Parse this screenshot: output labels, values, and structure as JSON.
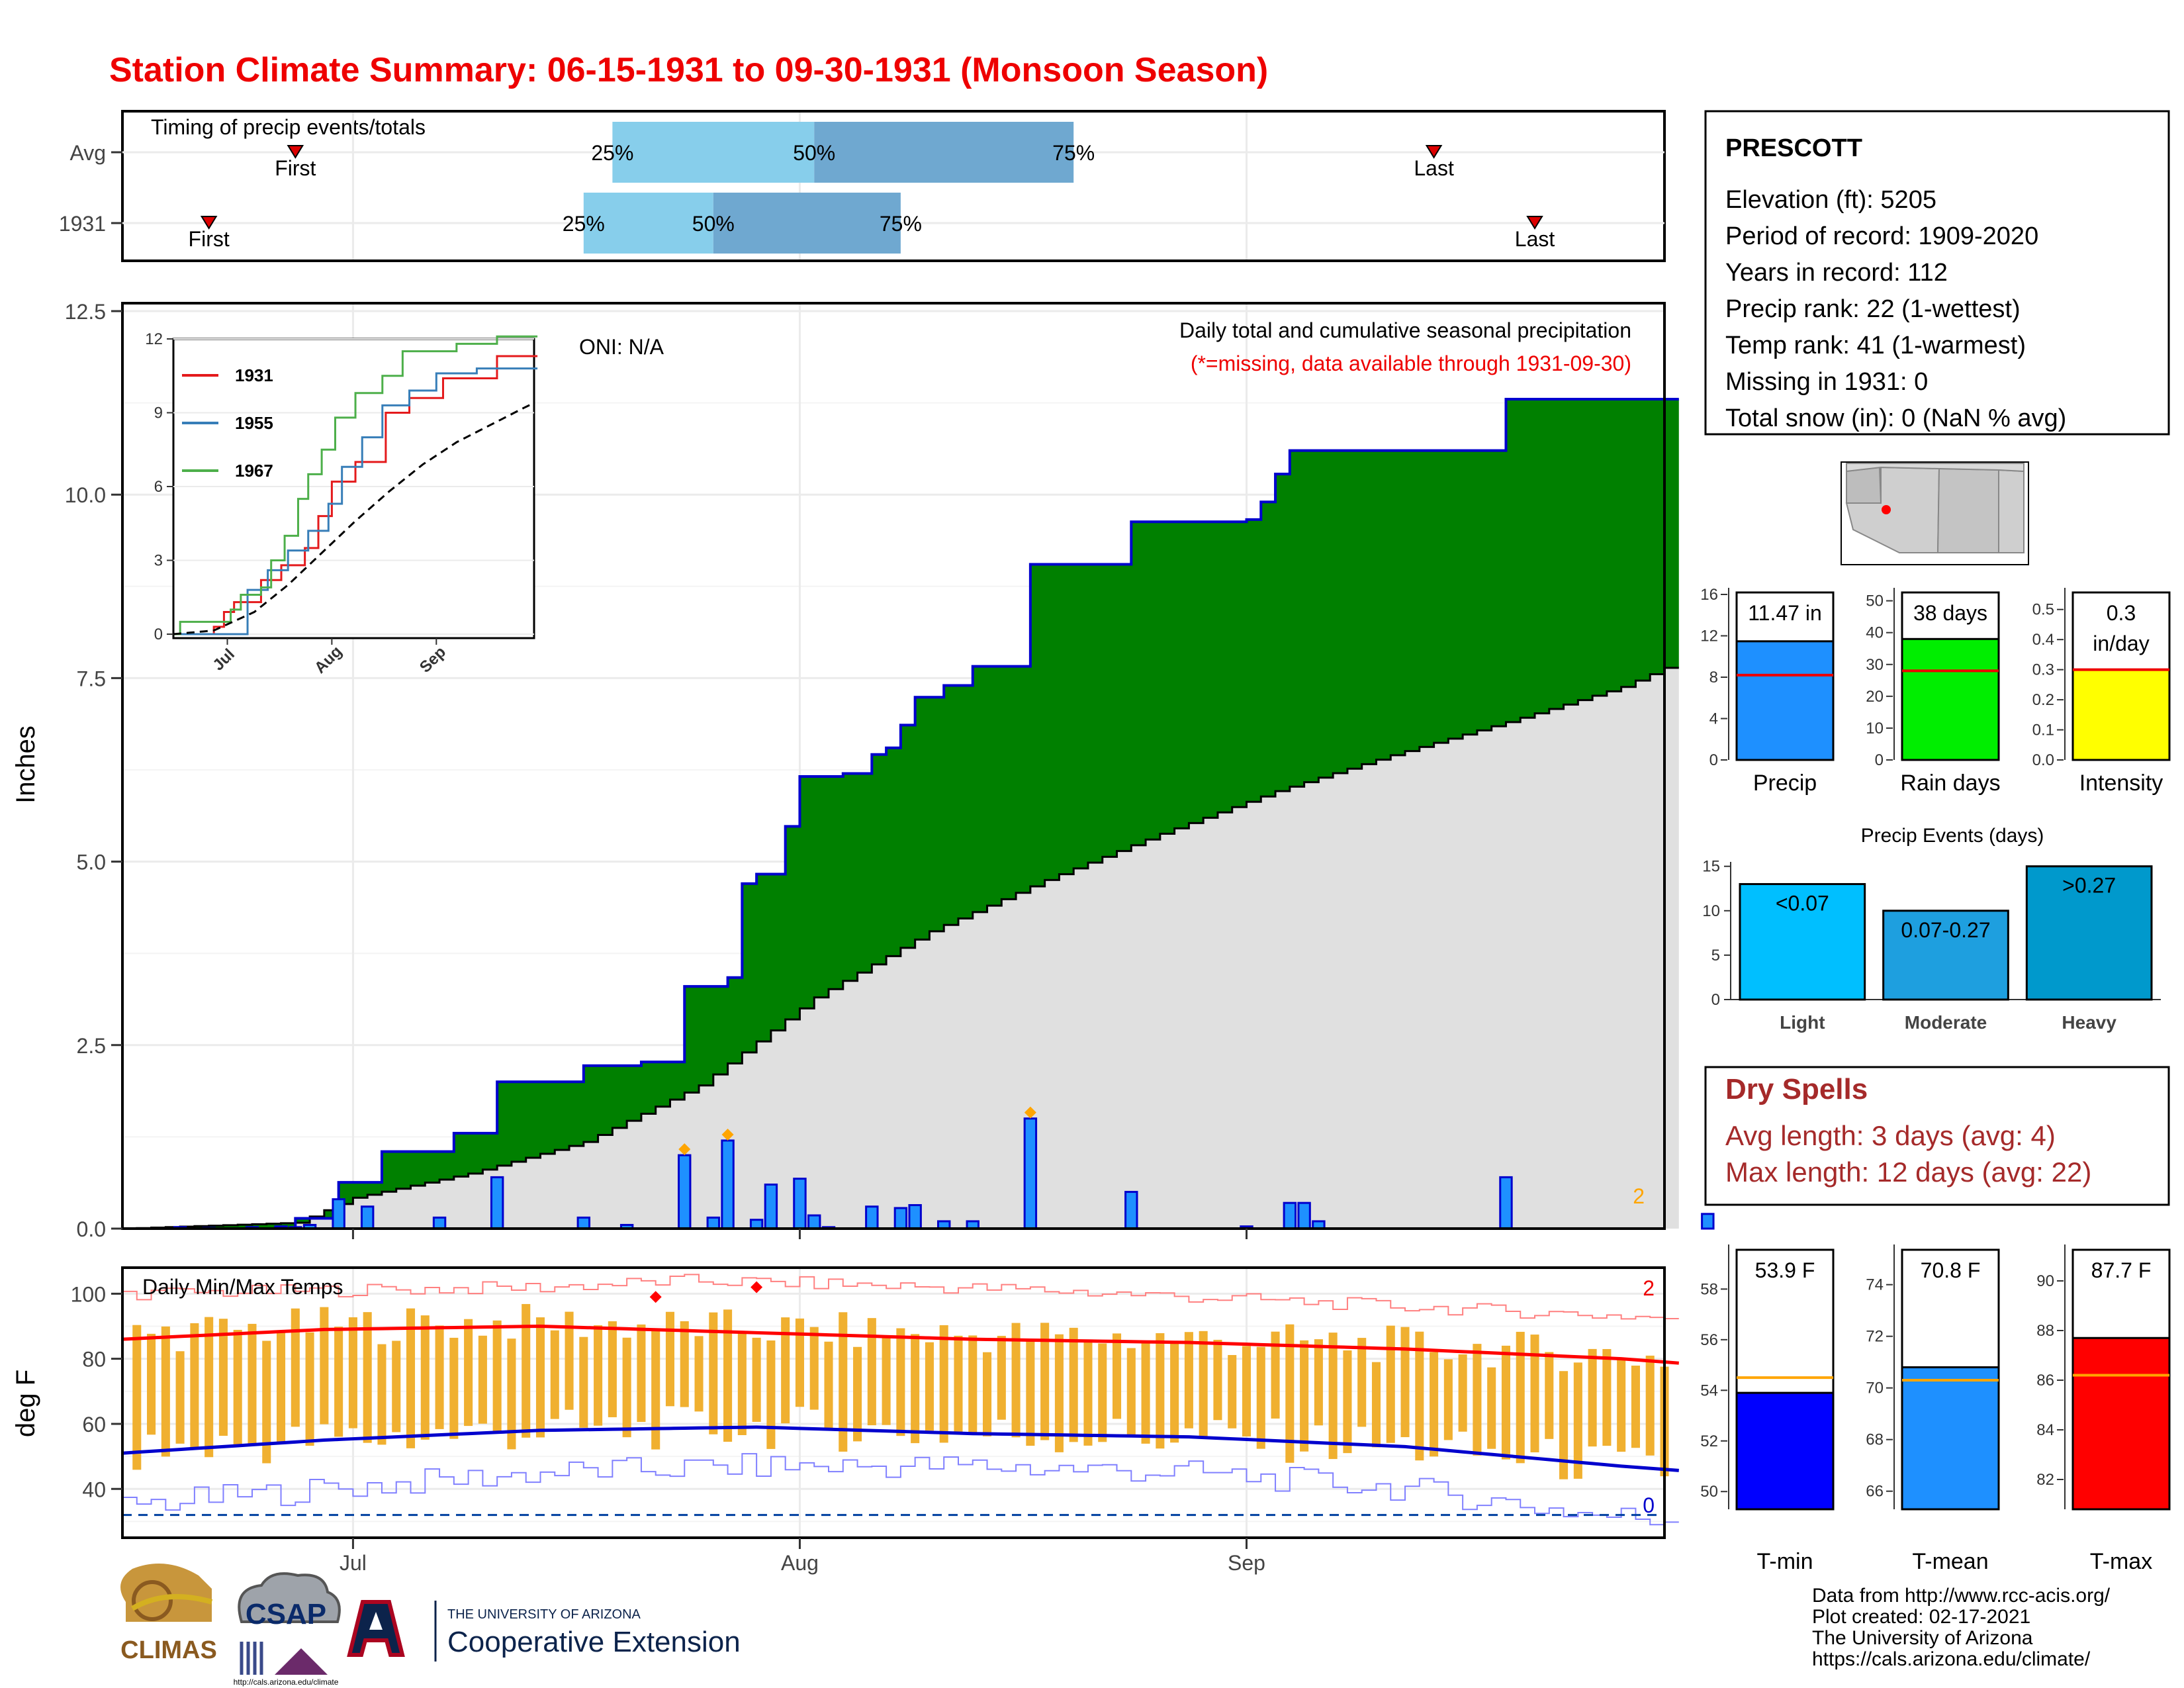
{
  "title": "Station Climate Summary: 06-15-1931 to 09-30-1931 (Monsoon Season)",
  "colors": {
    "title": "#ee0000",
    "green": "#008000",
    "cum_line": "#0000cd",
    "bar": "#1e90ff",
    "normal_fill": "#e0e0e0",
    "tmax": "#ff0000",
    "tmin": "#0000ff",
    "range_bar": "#f0b030",
    "dry": "#a52a2a"
  },
  "timing": {
    "title": "Timing of precip events/totals",
    "rows": [
      {
        "label": "Avg",
        "first_label": "First",
        "last_label": "Last",
        "first_doy": 178,
        "last_doy": 257,
        "p25": 200,
        "p50": 214,
        "p75": 232,
        "p25_label": "25%",
        "p50_label": "50%",
        "p75_label": "75%"
      },
      {
        "label": "1931",
        "first_label": "First",
        "last_label": "Last",
        "first_doy": 172,
        "last_doy": 264,
        "p25": 198,
        "p50": 207,
        "p75": 220,
        "p25_label": "25%",
        "p50_label": "50%",
        "p75_label": "75%"
      }
    ]
  },
  "station": {
    "name": "PRESCOTT",
    "lines": [
      "Elevation (ft): 5205",
      "Period of record: 1909-2020",
      "Years in record: 112",
      "Precip rank: 22 (1-wettest)",
      "Temp rank: 41 (1-warmest)",
      "Missing in 1931: 0",
      "Total snow (in): 0 (NaN % avg)"
    ]
  },
  "main": {
    "ylabel": "Inches",
    "oni": "ONI: N/A",
    "header": "Daily total and cumulative seasonal precipitation",
    "subheader": "(*=missing, data available through 1931-09-30)",
    "count_label": "2",
    "x_ticks": [
      "Jul",
      "Aug",
      "Sep"
    ],
    "y_ticks": [
      "0.0",
      "2.5",
      "5.0",
      "7.5",
      "10.0",
      "12.5"
    ]
  },
  "inset": {
    "legend": [
      "1931",
      "1955",
      "1967"
    ],
    "y_ticks": [
      "0",
      "3",
      "6",
      "9",
      "12"
    ],
    "x_ticks": [
      "Jul",
      "Aug",
      "Sep"
    ]
  },
  "chart_data": [
    {
      "type": "bar",
      "title": "Daily total and cumulative seasonal precipitation",
      "ylabel": "Inches",
      "ylim": [
        0,
        12.5
      ],
      "x_domain_doy": [
        166,
        273
      ],
      "daily_precip": [
        [
          170,
          0.02
        ],
        [
          172,
          0.01
        ],
        [
          175,
          0.02
        ],
        [
          177,
          0.03
        ],
        [
          178,
          0.02
        ],
        [
          179,
          0.05
        ],
        [
          181,
          0.4
        ],
        [
          183,
          0.3
        ],
        [
          188,
          0.15
        ],
        [
          192,
          0.7
        ],
        [
          198,
          0.15
        ],
        [
          201,
          0.05
        ],
        [
          205,
          1.0
        ],
        [
          207,
          0.15
        ],
        [
          208,
          1.2
        ],
        [
          210,
          0.12
        ],
        [
          211,
          0.6
        ],
        [
          213,
          0.68
        ],
        [
          214,
          0.18
        ],
        [
          215,
          0.02
        ],
        [
          218,
          0.3
        ],
        [
          220,
          0.28
        ],
        [
          221,
          0.32
        ],
        [
          223,
          0.1
        ],
        [
          225,
          0.1
        ],
        [
          229,
          1.5
        ],
        [
          236,
          0.5
        ],
        [
          244,
          0.03
        ],
        [
          247,
          0.35
        ],
        [
          248,
          0.35
        ],
        [
          249,
          0.1
        ],
        [
          262,
          0.7
        ],
        [
          276,
          0.2
        ]
      ],
      "cumulative_1931": [
        [
          166,
          0
        ],
        [
          178,
          0.14
        ],
        [
          181,
          0.63
        ],
        [
          184,
          1.05
        ],
        [
          189,
          1.3
        ],
        [
          192,
          2.0
        ],
        [
          198,
          2.22
        ],
        [
          202,
          2.27
        ],
        [
          205,
          3.3
        ],
        [
          208,
          3.42
        ],
        [
          209,
          4.7
        ],
        [
          210,
          4.83
        ],
        [
          212,
          5.48
        ],
        [
          213,
          6.16
        ],
        [
          216,
          6.2
        ],
        [
          218,
          6.46
        ],
        [
          219,
          6.55
        ],
        [
          220,
          6.86
        ],
        [
          221,
          7.24
        ],
        [
          223,
          7.4
        ],
        [
          225,
          7.66
        ],
        [
          229,
          9.05
        ],
        [
          236,
          9.63
        ],
        [
          244,
          9.66
        ],
        [
          245,
          9.9
        ],
        [
          246,
          10.28
        ],
        [
          247,
          10.6
        ],
        [
          262,
          11.3
        ],
        [
          276,
          11.47
        ]
      ],
      "normal_cumulative": [
        [
          166,
          0
        ],
        [
          178,
          0.08
        ],
        [
          182,
          0.42
        ],
        [
          190,
          0.75
        ],
        [
          198,
          1.18
        ],
        [
          206,
          1.95
        ],
        [
          214,
          3.15
        ],
        [
          222,
          4.05
        ],
        [
          230,
          4.75
        ],
        [
          238,
          5.38
        ],
        [
          246,
          5.96
        ],
        [
          254,
          6.45
        ],
        [
          262,
          6.9
        ],
        [
          270,
          7.38
        ],
        [
          276,
          7.9
        ]
      ],
      "oni": "N/A"
    },
    {
      "type": "line",
      "title": "Inset cumulative precipitation",
      "legend": [
        "1931",
        "1955",
        "1967"
      ],
      "ylim": [
        0,
        12
      ],
      "series": [
        {
          "name": "1931",
          "color": "#e41a1c",
          "points": [
            [
              166,
              0
            ],
            [
              178,
              0.3
            ],
            [
              181,
              0.9
            ],
            [
              184,
              1.3
            ],
            [
              192,
              2.2
            ],
            [
              198,
              2.8
            ],
            [
              205,
              3.5
            ],
            [
              209,
              4.8
            ],
            [
              213,
              6.2
            ],
            [
              220,
              7.0
            ],
            [
              229,
              9.0
            ],
            [
              236,
              9.6
            ],
            [
              246,
              10.4
            ],
            [
              262,
              11.3
            ],
            [
              276,
              11.6
            ]
          ]
        },
        {
          "name": "1955",
          "color": "#377eb8",
          "points": [
            [
              166,
              0
            ],
            [
              186,
              0
            ],
            [
              188,
              1.8
            ],
            [
              194,
              2.6
            ],
            [
              200,
              3.4
            ],
            [
              206,
              4.2
            ],
            [
              212,
              5.3
            ],
            [
              216,
              6.8
            ],
            [
              222,
              8.0
            ],
            [
              228,
              9.3
            ],
            [
              236,
              9.9
            ],
            [
              244,
              10.6
            ],
            [
              256,
              10.8
            ],
            [
              276,
              10.8
            ]
          ]
        },
        {
          "name": "1967",
          "color": "#4daf4a",
          "points": [
            [
              166,
              0
            ],
            [
              168,
              0.5
            ],
            [
              180,
              0.5
            ],
            [
              183,
              1.0
            ],
            [
              186,
              1.6
            ],
            [
              192,
              1.9
            ],
            [
              195,
              3.0
            ],
            [
              199,
              4.0
            ],
            [
              203,
              5.5
            ],
            [
              206,
              6.5
            ],
            [
              210,
              7.5
            ],
            [
              214,
              8.8
            ],
            [
              220,
              9.8
            ],
            [
              228,
              10.5
            ],
            [
              234,
              11.5
            ],
            [
              250,
              11.8
            ],
            [
              262,
              12.1
            ],
            [
              276,
              12.1
            ]
          ]
        },
        {
          "name": "",
          "color": "#000000",
          "dashed": true,
          "points": [
            [
              166,
              0
            ],
            [
              178,
              0.15
            ],
            [
              190,
              0.9
            ],
            [
              200,
              2.0
            ],
            [
              210,
              3.3
            ],
            [
              220,
              4.6
            ],
            [
              230,
              5.8
            ],
            [
              240,
              6.9
            ],
            [
              250,
              7.8
            ],
            [
              260,
              8.5
            ],
            [
              270,
              9.2
            ],
            [
              276,
              9.6
            ]
          ]
        }
      ]
    },
    {
      "type": "line",
      "title": "Daily Min/Max Temps",
      "ylabel": "deg F",
      "ylim": [
        25,
        108
      ],
      "y_ticks": [
        "40",
        "60",
        "80",
        "100"
      ],
      "x_ticks": [
        "Jul",
        "Aug",
        "Sep"
      ],
      "avg_max_anchors": [
        [
          166,
          86
        ],
        [
          180,
          89
        ],
        [
          195,
          90
        ],
        [
          210,
          88
        ],
        [
          225,
          86
        ],
        [
          240,
          85
        ],
        [
          255,
          83
        ],
        [
          270,
          80
        ],
        [
          276,
          78
        ]
      ],
      "avg_min_anchors": [
        [
          166,
          51
        ],
        [
          180,
          55
        ],
        [
          195,
          58
        ],
        [
          210,
          59
        ],
        [
          225,
          57
        ],
        [
          240,
          56
        ],
        [
          255,
          53
        ],
        [
          270,
          47
        ],
        [
          276,
          45
        ]
      ],
      "record_max_anchors": [
        [
          166,
          100
        ],
        [
          180,
          101
        ],
        [
          195,
          102
        ],
        [
          205,
          104
        ],
        [
          215,
          103
        ],
        [
          230,
          101
        ],
        [
          245,
          98
        ],
        [
          260,
          95
        ],
        [
          276,
          92
        ]
      ],
      "record_min_anchors": [
        [
          166,
          35
        ],
        [
          180,
          40
        ],
        [
          195,
          45
        ],
        [
          210,
          47
        ],
        [
          225,
          47
        ],
        [
          240,
          45
        ],
        [
          255,
          40
        ],
        [
          268,
          32
        ],
        [
          276,
          30
        ]
      ],
      "reference_line": 32,
      "record_count_high": "2",
      "record_count_low": "0",
      "title_label": "Daily Min/Max Temps"
    },
    {
      "type": "bar",
      "title": "Precip",
      "categories": [
        "Precip"
      ],
      "values": [
        11.47
      ],
      "avg": 8.2,
      "ylim": [
        0,
        16
      ],
      "y_ticks": [
        "0",
        "4",
        "8",
        "12",
        "16"
      ],
      "value_label": "11.47 in",
      "color": "#1e90ff"
    },
    {
      "type": "bar",
      "title": "Rain days",
      "categories": [
        "Rain days"
      ],
      "values": [
        38
      ],
      "avg": 28,
      "ylim": [
        0,
        52
      ],
      "y_ticks": [
        "0",
        "10",
        "20",
        "30",
        "40",
        "50"
      ],
      "value_label": "38 days",
      "color": "#00ee00"
    },
    {
      "type": "bar",
      "title": "Intensity",
      "categories": [
        "Intensity"
      ],
      "values": [
        0.3
      ],
      "avg": 0.3,
      "ylim": [
        0,
        0.55
      ],
      "y_ticks": [
        "0.0",
        "0.1",
        "0.2",
        "0.3",
        "0.4",
        "0.5"
      ],
      "value_label": "0.3 in/day",
      "value_line1": "0.3",
      "value_line2": "in/day",
      "color": "#ffff00"
    },
    {
      "type": "bar",
      "title": "Precip Events (days)",
      "categories": [
        "Light",
        "Moderate",
        "Heavy"
      ],
      "values": [
        13,
        10,
        15
      ],
      "labels": [
        "<0.07",
        "0.07-0.27",
        ">0.27"
      ],
      "ylim": [
        0,
        15.5
      ],
      "y_ticks": [
        "0",
        "5",
        "10",
        "15"
      ],
      "colors": [
        "#00bfff",
        "#1e9fdf",
        "#0099cc"
      ]
    },
    {
      "type": "bar",
      "title": "T-min",
      "categories": [
        "T-min"
      ],
      "values": [
        53.9
      ],
      "avg": 54.5,
      "ylim": [
        49.3,
        59.5
      ],
      "y_ticks": [
        "50",
        "52",
        "54",
        "56",
        "58"
      ],
      "value_label": "53.9 F",
      "color": "#0000ff"
    },
    {
      "type": "bar",
      "title": "T-mean",
      "categories": [
        "T-mean"
      ],
      "values": [
        70.8
      ],
      "avg": 70.3,
      "ylim": [
        65.3,
        75.3
      ],
      "y_ticks": [
        "66",
        "68",
        "70",
        "72",
        "74"
      ],
      "value_label": "70.8 F",
      "color": "#1e90ff"
    },
    {
      "type": "bar",
      "title": "T-max",
      "categories": [
        "T-max"
      ],
      "values": [
        87.7
      ],
      "avg": 86.2,
      "ylim": [
        80.8,
        91.2
      ],
      "y_ticks": [
        "82",
        "84",
        "86",
        "88",
        "90"
      ],
      "value_label": "87.7 F",
      "color": "#ff0000"
    }
  ],
  "dry_spells": {
    "title": "Dry Spells",
    "avg_line": "Avg length: 3 days (avg: 4)",
    "max_line": "Max length: 12 days (avg: 22)"
  },
  "footer": {
    "lines": [
      "Data from http://www.rcc-acis.org/",
      "Plot created: 02-17-2021",
      "The University of Arizona",
      "https://cals.arizona.edu/climate/"
    ],
    "logo_climas": "CLIMAS",
    "logo_csap": "CSAP",
    "csap_url": "http://cals.arizona.edu/climate",
    "ua_top": "THE UNIVERSITY OF ARIZONA",
    "ua_main": "Cooperative Extension",
    "ua_letter": "A"
  }
}
